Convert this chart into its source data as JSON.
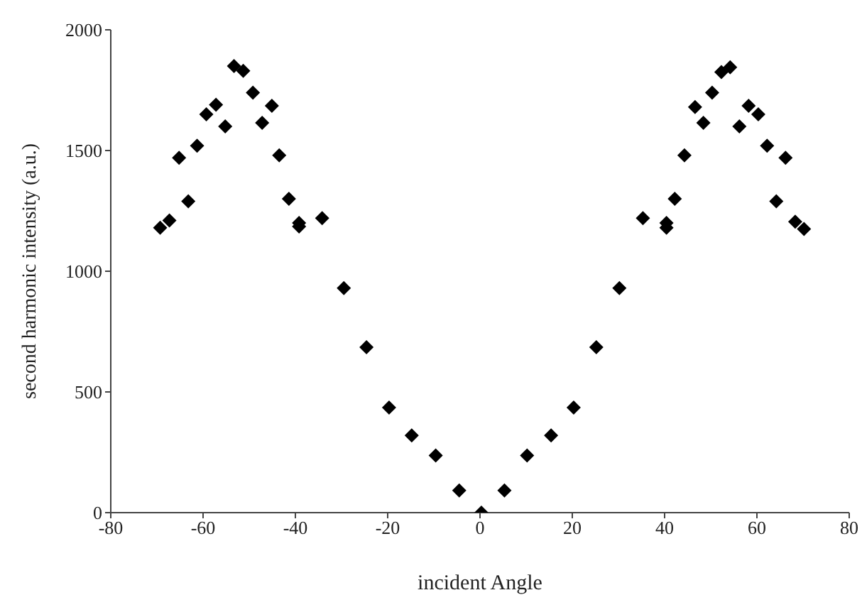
{
  "chart_data": {
    "type": "scatter",
    "xlabel": "incident Angle",
    "ylabel": "second harmonic intensity (a.u.)",
    "xlim": [
      -80,
      80
    ],
    "xticks": [
      -80,
      -60,
      -40,
      -20,
      0,
      20,
      40,
      60,
      80
    ],
    "ylim": [
      0,
      2000
    ],
    "yticks": [
      0,
      500,
      1000,
      1500,
      2000
    ],
    "grid": false,
    "legend": false,
    "marker": "diamond",
    "series": [
      {
        "color": "#000000",
        "x": [
          -69.3,
          -67.3,
          -65.2,
          -63.2,
          -61.3,
          -59.3,
          -57.2,
          -55.2,
          -53.3,
          -51.3,
          -49.2,
          -47.2,
          -45.1,
          -43.5,
          -41.4,
          -39.2,
          -39.2,
          -34.2,
          -29.5,
          -24.6,
          -19.7,
          -14.8,
          -9.6,
          -4.5,
          0.3,
          5.3,
          10.2,
          15.4,
          20.3,
          25.2,
          30.2,
          35.3,
          40.4,
          40.4,
          42.2,
          44.3,
          46.6,
          48.4,
          50.3,
          52.3,
          54.2,
          56.2,
          58.2,
          60.3,
          62.2,
          64.2,
          66.2,
          68.3,
          70.2
        ],
        "values": [
          1180,
          1210,
          1470,
          1290,
          1520,
          1650,
          1690,
          1600,
          1850,
          1830,
          1740,
          1615,
          1685,
          1480,
          1300,
          1200,
          1185,
          1220,
          930,
          685,
          435,
          320,
          237,
          92,
          0,
          92,
          237,
          320,
          435,
          685,
          930,
          1220,
          1200,
          1180,
          1300,
          1480,
          1680,
          1615,
          1740,
          1825,
          1845,
          1600,
          1685,
          1650,
          1520,
          1290,
          1470,
          1205,
          1175
        ]
      }
    ]
  }
}
